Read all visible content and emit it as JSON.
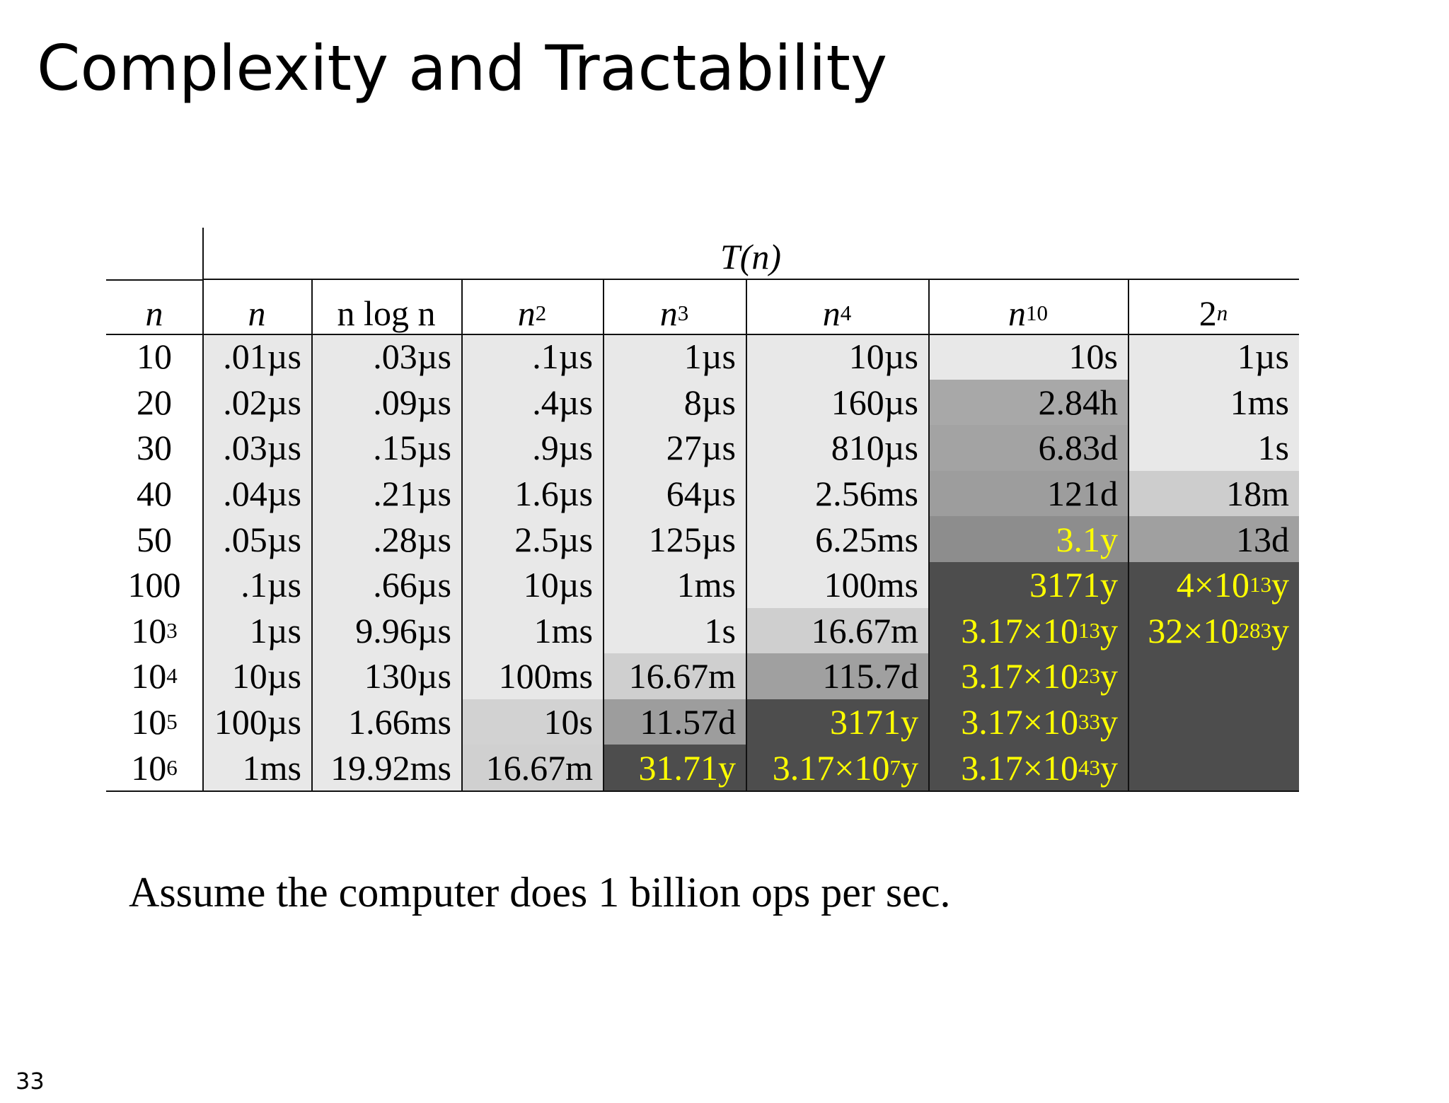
{
  "slide": {
    "title": "Complexity and Tractability",
    "page_number": "33",
    "note": "Assume the computer does 1 billion ops per sec."
  },
  "table": {
    "group_header": "T(n)",
    "columns": [
      {
        "label": "n"
      },
      {
        "label": "n"
      },
      {
        "label": "n log n"
      },
      {
        "label": "n",
        "sup": "2"
      },
      {
        "label": "n",
        "sup": "3"
      },
      {
        "label": "n",
        "sup": "4"
      },
      {
        "label": "n",
        "sup": "10"
      },
      {
        "label": "2",
        "sup": "n"
      }
    ],
    "rows": [
      [
        {
          "text": "10"
        },
        {
          "text": ".01µs",
          "bg": "#e8e8e8",
          "color": "#000000"
        },
        {
          "text": ".03µs",
          "bg": "#e8e8e8",
          "color": "#000000"
        },
        {
          "text": ".1µs",
          "bg": "#e8e8e8",
          "color": "#000000"
        },
        {
          "text": "1µs",
          "bg": "#e8e8e8",
          "color": "#000000"
        },
        {
          "text": "10µs",
          "bg": "#e8e8e8",
          "color": "#000000"
        },
        {
          "text": "10s",
          "bg": "#e8e8e8",
          "color": "#000000"
        },
        {
          "text": "1µs",
          "bg": "#e8e8e8",
          "color": "#000000"
        }
      ],
      [
        {
          "text": "20"
        },
        {
          "text": ".02µs",
          "bg": "#e8e8e8",
          "color": "#000000"
        },
        {
          "text": ".09µs",
          "bg": "#e8e8e8",
          "color": "#000000"
        },
        {
          "text": ".4µs",
          "bg": "#e8e8e8",
          "color": "#000000"
        },
        {
          "text": "8µs",
          "bg": "#e8e8e8",
          "color": "#000000"
        },
        {
          "text": "160µs",
          "bg": "#e8e8e8",
          "color": "#000000"
        },
        {
          "text": "2.84h",
          "bg": "#a8a8a8",
          "color": "#000000"
        },
        {
          "text": "1ms",
          "bg": "#e8e8e8",
          "color": "#000000"
        }
      ],
      [
        {
          "text": "30"
        },
        {
          "text": ".03µs",
          "bg": "#e8e8e8",
          "color": "#000000"
        },
        {
          "text": ".15µs",
          "bg": "#e8e8e8",
          "color": "#000000"
        },
        {
          "text": ".9µs",
          "bg": "#e8e8e8",
          "color": "#000000"
        },
        {
          "text": "27µs",
          "bg": "#e8e8e8",
          "color": "#000000"
        },
        {
          "text": "810µs",
          "bg": "#e8e8e8",
          "color": "#000000"
        },
        {
          "text": "6.83d",
          "bg": "#a3a3a3",
          "color": "#000000"
        },
        {
          "text": "1s",
          "bg": "#e8e8e8",
          "color": "#000000"
        }
      ],
      [
        {
          "text": "40"
        },
        {
          "text": ".04µs",
          "bg": "#e8e8e8",
          "color": "#000000"
        },
        {
          "text": ".21µs",
          "bg": "#e8e8e8",
          "color": "#000000"
        },
        {
          "text": "1.6µs",
          "bg": "#e8e8e8",
          "color": "#000000"
        },
        {
          "text": "64µs",
          "bg": "#e8e8e8",
          "color": "#000000"
        },
        {
          "text": "2.56ms",
          "bg": "#e8e8e8",
          "color": "#000000"
        },
        {
          "text": "121d",
          "bg": "#9d9d9d",
          "color": "#000000"
        },
        {
          "text": "18m",
          "bg": "#cdcdcd",
          "color": "#000000"
        }
      ],
      [
        {
          "text": "50"
        },
        {
          "text": ".05µs",
          "bg": "#e8e8e8",
          "color": "#000000"
        },
        {
          "text": ".28µs",
          "bg": "#e8e8e8",
          "color": "#000000"
        },
        {
          "text": "2.5µs",
          "bg": "#e8e8e8",
          "color": "#000000"
        },
        {
          "text": "125µs",
          "bg": "#e8e8e8",
          "color": "#000000"
        },
        {
          "text": "6.25ms",
          "bg": "#e8e8e8",
          "color": "#000000"
        },
        {
          "text": "3.1y",
          "bg": "#8d8d8d",
          "color": "#ffff00"
        },
        {
          "text": "13d",
          "bg": "#a0a0a0",
          "color": "#000000"
        }
      ],
      [
        {
          "text": "100"
        },
        {
          "text": ".1µs",
          "bg": "#e8e8e8",
          "color": "#000000"
        },
        {
          "text": ".66µs",
          "bg": "#e8e8e8",
          "color": "#000000"
        },
        {
          "text": "10µs",
          "bg": "#e8e8e8",
          "color": "#000000"
        },
        {
          "text": "1ms",
          "bg": "#e8e8e8",
          "color": "#000000"
        },
        {
          "text": "100ms",
          "bg": "#e8e8e8",
          "color": "#000000"
        },
        {
          "text": "3171y",
          "bg": "#4d4d4d",
          "color": "#ffff00"
        },
        {
          "text": "4×10",
          "sup": "13",
          "suffix": "y",
          "bg": "#4d4d4d",
          "color": "#ffff00"
        }
      ],
      [
        {
          "text": "10",
          "sup": "3"
        },
        {
          "text": "1µs",
          "bg": "#e8e8e8",
          "color": "#000000"
        },
        {
          "text": "9.96µs",
          "bg": "#e8e8e8",
          "color": "#000000"
        },
        {
          "text": "1ms",
          "bg": "#e8e8e8",
          "color": "#000000"
        },
        {
          "text": "1s",
          "bg": "#e8e8e8",
          "color": "#000000"
        },
        {
          "text": "16.67m",
          "bg": "#cfcfcf",
          "color": "#000000"
        },
        {
          "text": "3.17×10",
          "sup": "13",
          "suffix": "y",
          "bg": "#4d4d4d",
          "color": "#ffff00"
        },
        {
          "text": "32×10",
          "sup": "283",
          "suffix": "y",
          "bg": "#4d4d4d",
          "color": "#ffff00"
        }
      ],
      [
        {
          "text": "10",
          "sup": "4"
        },
        {
          "text": "10µs",
          "bg": "#e8e8e8",
          "color": "#000000"
        },
        {
          "text": "130µs",
          "bg": "#e8e8e8",
          "color": "#000000"
        },
        {
          "text": "100ms",
          "bg": "#e8e8e8",
          "color": "#000000"
        },
        {
          "text": "16.67m",
          "bg": "#cfcfcf",
          "color": "#000000"
        },
        {
          "text": "115.7d",
          "bg": "#a0a0a0",
          "color": "#000000"
        },
        {
          "text": "3.17×10",
          "sup": "23",
          "suffix": "y",
          "bg": "#4d4d4d",
          "color": "#ffff00"
        },
        {
          "text": "",
          "bg": "#4d4d4d",
          "color": "#ffff00"
        }
      ],
      [
        {
          "text": "10",
          "sup": "5"
        },
        {
          "text": "100µs",
          "bg": "#e8e8e8",
          "color": "#000000"
        },
        {
          "text": "1.66ms",
          "bg": "#e8e8e8",
          "color": "#000000"
        },
        {
          "text": "10s",
          "bg": "#d2d2d2",
          "color": "#000000"
        },
        {
          "text": "11.57d",
          "bg": "#9d9d9d",
          "color": "#000000"
        },
        {
          "text": "3171y",
          "bg": "#4d4d4d",
          "color": "#ffff00"
        },
        {
          "text": "3.17×10",
          "sup": "33",
          "suffix": "y",
          "bg": "#4d4d4d",
          "color": "#ffff00"
        },
        {
          "text": "",
          "bg": "#4d4d4d",
          "color": "#ffff00"
        }
      ],
      [
        {
          "text": "10",
          "sup": "6"
        },
        {
          "text": "1ms",
          "bg": "#e8e8e8",
          "color": "#000000"
        },
        {
          "text": "19.92ms",
          "bg": "#e8e8e8",
          "color": "#000000"
        },
        {
          "text": "16.67m",
          "bg": "#d0d0d0",
          "color": "#000000"
        },
        {
          "text": "31.71y",
          "bg": "#4d4d4d",
          "color": "#ffff00"
        },
        {
          "text": "3.17×10",
          "sup": "7",
          "suffix": "y",
          "bg": "#4d4d4d",
          "color": "#ffff00"
        },
        {
          "text": "3.17×10",
          "sup": "43",
          "suffix": "y",
          "bg": "#4d4d4d",
          "color": "#ffff00"
        },
        {
          "text": "",
          "bg": "#4d4d4d",
          "color": "#ffff00"
        }
      ]
    ]
  }
}
